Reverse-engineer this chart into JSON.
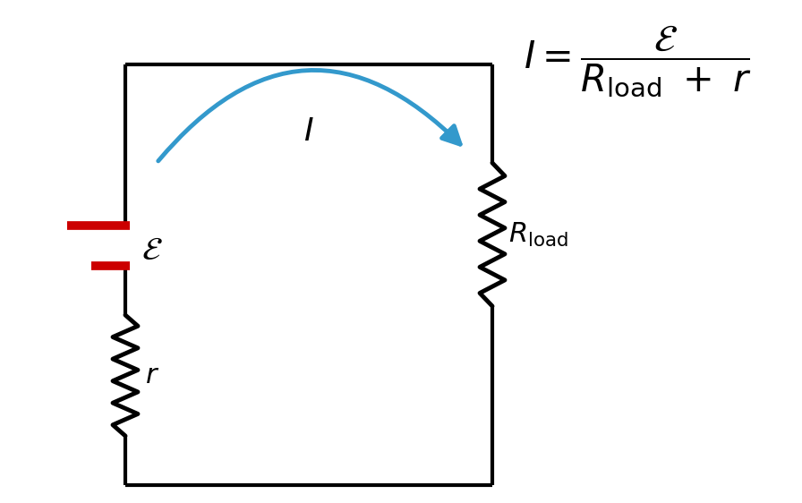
{
  "bg_color": "#ffffff",
  "circuit_color": "#000000",
  "battery_pos_color": "#cc0000",
  "arrow_color": "#3399cc",
  "line_width": 3.0,
  "fig_width": 8.96,
  "fig_height": 5.62
}
